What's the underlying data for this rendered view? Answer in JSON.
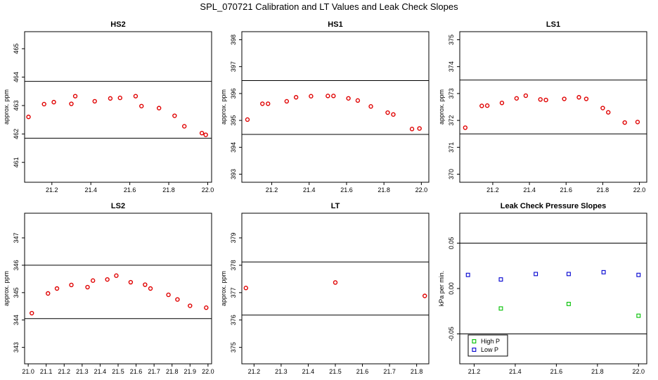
{
  "figure_title": "SPL_070721  Calibration and LT Values and Leak Check Slopes",
  "chart_data": [
    {
      "id": "hs2",
      "type": "scatter",
      "title": "HS2",
      "ylabel": "approx. ppm",
      "xlim": [
        21.06,
        22.02
      ],
      "ylim": [
        460.3,
        465.6
      ],
      "xticks": [
        21.2,
        21.4,
        21.6,
        21.8,
        22.0
      ],
      "xtick_labels": [
        "21.2",
        "21.4",
        "21.6",
        "21.8",
        "22.0"
      ],
      "yticks": [
        461,
        462,
        463,
        464,
        465
      ],
      "ytick_labels": [
        "461",
        "462",
        "463",
        "464",
        "465"
      ],
      "hlines": [
        463.85,
        461.85
      ],
      "series": [
        {
          "color": "#e00000",
          "marker": "circle",
          "x": [
            21.08,
            21.16,
            21.21,
            21.3,
            21.32,
            21.42,
            21.5,
            21.55,
            21.63,
            21.66,
            21.75,
            21.83,
            21.88,
            21.97,
            21.99
          ],
          "y": [
            462.6,
            463.05,
            463.12,
            463.06,
            463.33,
            463.15,
            463.25,
            463.27,
            463.33,
            462.98,
            462.91,
            462.64,
            462.27,
            462.03,
            461.97
          ]
        }
      ]
    },
    {
      "id": "hs1",
      "type": "scatter",
      "title": "HS1",
      "ylabel": "approx. ppm",
      "xlim": [
        21.04,
        22.04
      ],
      "ylim": [
        392.7,
        398.3
      ],
      "xticks": [
        21.2,
        21.4,
        21.6,
        21.8,
        22.0
      ],
      "xtick_labels": [
        "21.2",
        "21.4",
        "21.6",
        "21.8",
        "22.0"
      ],
      "yticks": [
        393,
        394,
        395,
        396,
        397,
        398
      ],
      "ytick_labels": [
        "393",
        "394",
        "395",
        "396",
        "397",
        "398"
      ],
      "hlines": [
        396.48,
        394.48
      ],
      "series": [
        {
          "color": "#e00000",
          "marker": "circle",
          "x": [
            21.07,
            21.15,
            21.18,
            21.28,
            21.33,
            21.41,
            21.5,
            21.53,
            21.61,
            21.66,
            21.73,
            21.82,
            21.85,
            21.95,
            21.99
          ],
          "y": [
            395.03,
            395.62,
            395.62,
            395.71,
            395.86,
            395.9,
            395.91,
            395.91,
            395.82,
            395.74,
            395.52,
            395.29,
            395.22,
            394.68,
            394.7
          ]
        }
      ]
    },
    {
      "id": "ls1",
      "type": "scatter",
      "title": "LS1",
      "ylabel": "approx. ppm",
      "xlim": [
        21.02,
        22.04
      ],
      "ylim": [
        369.7,
        375.3
      ],
      "xticks": [
        21.2,
        21.4,
        21.6,
        21.8,
        22.0
      ],
      "xtick_labels": [
        "21.2",
        "21.4",
        "21.6",
        "21.8",
        "22.0"
      ],
      "yticks": [
        370,
        371,
        372,
        373,
        374,
        375
      ],
      "ytick_labels": [
        "370",
        "371",
        "372",
        "373",
        "374",
        "375"
      ],
      "hlines": [
        373.5,
        371.5
      ],
      "series": [
        {
          "color": "#e00000",
          "marker": "circle",
          "x": [
            21.05,
            21.14,
            21.17,
            21.25,
            21.33,
            21.38,
            21.46,
            21.49,
            21.59,
            21.67,
            21.71,
            21.8,
            21.83,
            21.92,
            21.99
          ],
          "y": [
            371.73,
            372.54,
            372.55,
            372.65,
            372.82,
            372.92,
            372.78,
            372.76,
            372.8,
            372.86,
            372.8,
            372.46,
            372.3,
            371.92,
            371.94
          ]
        }
      ]
    },
    {
      "id": "ls2",
      "type": "scatter",
      "title": "LS2",
      "ylabel": "approx. ppm",
      "xlim": [
        20.98,
        22.02
      ],
      "ylim": [
        342.4,
        347.9
      ],
      "xticks": [
        21.0,
        21.1,
        21.2,
        21.3,
        21.4,
        21.5,
        21.6,
        21.7,
        21.8,
        21.9,
        22.0
      ],
      "xtick_labels": [
        "21.0",
        "21.1",
        "21.2",
        "21.3",
        "21.4",
        "21.5",
        "21.6",
        "21.7",
        "21.8",
        "21.9",
        "22.0"
      ],
      "yticks": [
        343,
        344,
        345,
        346,
        347
      ],
      "ytick_labels": [
        "343",
        "344",
        "345",
        "346",
        "347"
      ],
      "hlines": [
        346.0,
        344.05
      ],
      "series": [
        {
          "color": "#e00000",
          "marker": "circle",
          "x": [
            21.02,
            21.11,
            21.16,
            21.24,
            21.33,
            21.36,
            21.44,
            21.49,
            21.57,
            21.65,
            21.68,
            21.78,
            21.83,
            21.9,
            21.99
          ],
          "y": [
            344.25,
            344.97,
            345.15,
            345.28,
            345.2,
            345.44,
            345.48,
            345.62,
            345.38,
            345.29,
            345.15,
            344.92,
            344.75,
            344.52,
            344.45
          ]
        }
      ]
    },
    {
      "id": "lt",
      "type": "scatter",
      "title": "LT",
      "ylabel": "approx. ppm",
      "xlim": [
        21.155,
        21.845
      ],
      "ylim": [
        374.4,
        379.9
      ],
      "xticks": [
        21.2,
        21.3,
        21.4,
        21.5,
        21.6,
        21.7,
        21.8
      ],
      "xtick_labels": [
        "21.2",
        "21.3",
        "21.4",
        "21.5",
        "21.6",
        "21.7",
        "21.8"
      ],
      "yticks": [
        375,
        376,
        377,
        378,
        379
      ],
      "ytick_labels": [
        "375",
        "376",
        "377",
        "378",
        "379"
      ],
      "hlines": [
        378.12,
        376.18
      ],
      "series": [
        {
          "color": "#e00000",
          "marker": "circle",
          "x": [
            21.17,
            21.5,
            21.83
          ],
          "y": [
            377.17,
            377.37,
            376.88
          ]
        }
      ]
    },
    {
      "id": "leak",
      "type": "scatter",
      "title": "Leak Check Pressure Slopes",
      "ylabel": "kPa per min.",
      "xlim": [
        21.13,
        22.04
      ],
      "ylim": [
        -0.083,
        0.083
      ],
      "xticks": [
        21.2,
        21.4,
        21.6,
        21.8,
        22.0
      ],
      "xtick_labels": [
        "21.2",
        "21.4",
        "21.6",
        "21.8",
        "22.0"
      ],
      "yticks": [
        -0.05,
        0.0,
        0.05
      ],
      "ytick_labels": [
        "-0.05",
        "0.00",
        "0.05"
      ],
      "hlines": [
        0.05,
        -0.05
      ],
      "legend": {
        "position": "bottom-left",
        "entries": [
          "High P",
          "Low P"
        ]
      },
      "series": [
        {
          "name": "High P",
          "color": "#00c000",
          "marker": "square",
          "x": [
            21.33,
            21.66,
            22.0
          ],
          "y": [
            -0.022,
            -0.017,
            -0.03
          ]
        },
        {
          "name": "Low P",
          "color": "#0000d0",
          "marker": "square",
          "x": [
            21.17,
            21.33,
            21.5,
            21.66,
            21.83,
            22.0
          ],
          "y": [
            0.015,
            0.01,
            0.016,
            0.016,
            0.018,
            0.015
          ]
        }
      ]
    }
  ]
}
